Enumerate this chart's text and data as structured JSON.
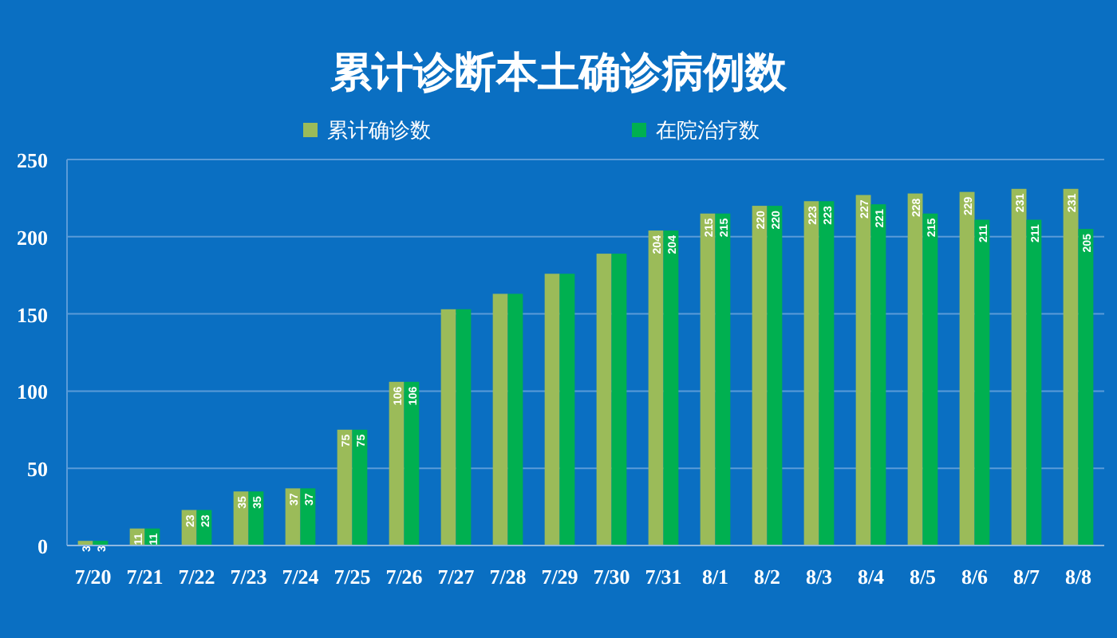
{
  "chart_data": {
    "type": "bar",
    "title": "累计诊断本土确诊病例数",
    "categories": [
      "7/20",
      "7/21",
      "7/22",
      "7/23",
      "7/24",
      "7/25",
      "7/26",
      "7/27",
      "7/28",
      "7/29",
      "7/30",
      "7/31",
      "8/1",
      "8/2",
      "8/3",
      "8/4",
      "8/5",
      "8/6",
      "8/7",
      "8/8"
    ],
    "series": [
      {
        "name": "累计确诊数",
        "color": "#9bbb59",
        "values": [
          3,
          11,
          23,
          35,
          37,
          75,
          106,
          153,
          163,
          176,
          189,
          204,
          215,
          220,
          223,
          227,
          228,
          229,
          231,
          231
        ],
        "value_labels": [
          "3",
          "11",
          "23",
          "35",
          "37",
          "75",
          "106",
          null,
          null,
          null,
          null,
          "204",
          "215",
          "220",
          "223",
          "227",
          "228",
          "229",
          "231",
          "231"
        ]
      },
      {
        "name": "在院治疗数",
        "color": "#00b050",
        "values": [
          3,
          11,
          23,
          35,
          37,
          75,
          106,
          153,
          163,
          176,
          189,
          204,
          215,
          220,
          223,
          221,
          215,
          211,
          211,
          205
        ],
        "value_labels": [
          "3",
          "11",
          "23",
          "35",
          "37",
          "75",
          "106",
          null,
          null,
          null,
          null,
          "204",
          "215",
          "220",
          "223",
          "221",
          "215",
          "211",
          "211",
          "205"
        ]
      }
    ],
    "ylim": [
      0,
      250
    ],
    "yticks": [
      0,
      50,
      100,
      150,
      200,
      250
    ],
    "grid": "y",
    "legend": "top"
  }
}
